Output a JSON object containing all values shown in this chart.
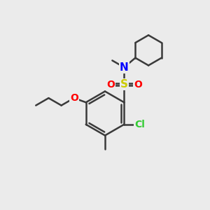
{
  "background_color": "#ebebeb",
  "bond_color": "#3a3a3a",
  "bond_width": 1.8,
  "atom_colors": {
    "N": "#0000ff",
    "O": "#ff0000",
    "S": "#cccc00",
    "Cl": "#33cc33",
    "C": "#3a3a3a"
  },
  "figsize": [
    3.0,
    3.0
  ],
  "dpi": 100,
  "xlim": [
    0,
    10
  ],
  "ylim": [
    0,
    10
  ]
}
